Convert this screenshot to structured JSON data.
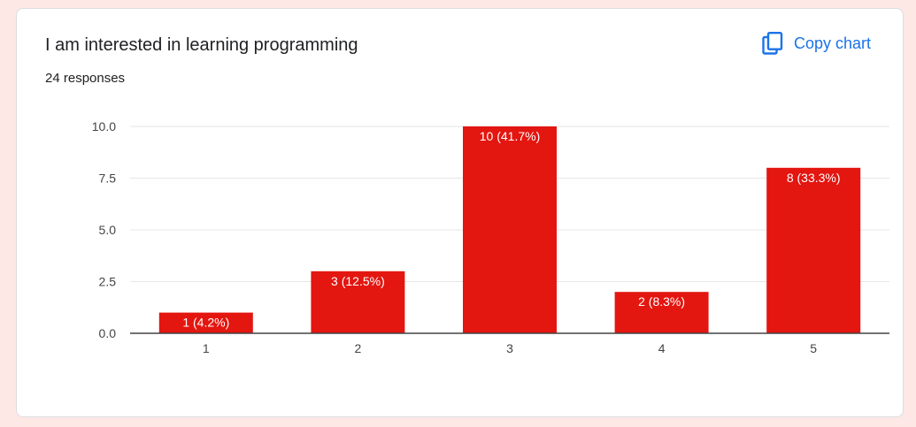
{
  "card": {
    "title": "I am interested in learning programming",
    "responses": "24 responses",
    "copy_label": "Copy chart"
  },
  "colors": {
    "bar": "#e31610",
    "accent": "#1a73e8",
    "background": "#fde8e6"
  },
  "icons": {
    "copy": "copy-icon"
  },
  "chart_data": {
    "type": "bar",
    "categories": [
      "1",
      "2",
      "3",
      "4",
      "5"
    ],
    "values": [
      1,
      3,
      10,
      2,
      8
    ],
    "data_labels": [
      "1 (4.2%)",
      "3 (12.5%)",
      "10 (41.7%)",
      "2 (8.3%)",
      "8 (33.3%)"
    ],
    "yticks": [
      "0.0",
      "2.5",
      "5.0",
      "7.5",
      "10.0"
    ],
    "ylim": [
      0,
      10
    ],
    "grid": true
  }
}
